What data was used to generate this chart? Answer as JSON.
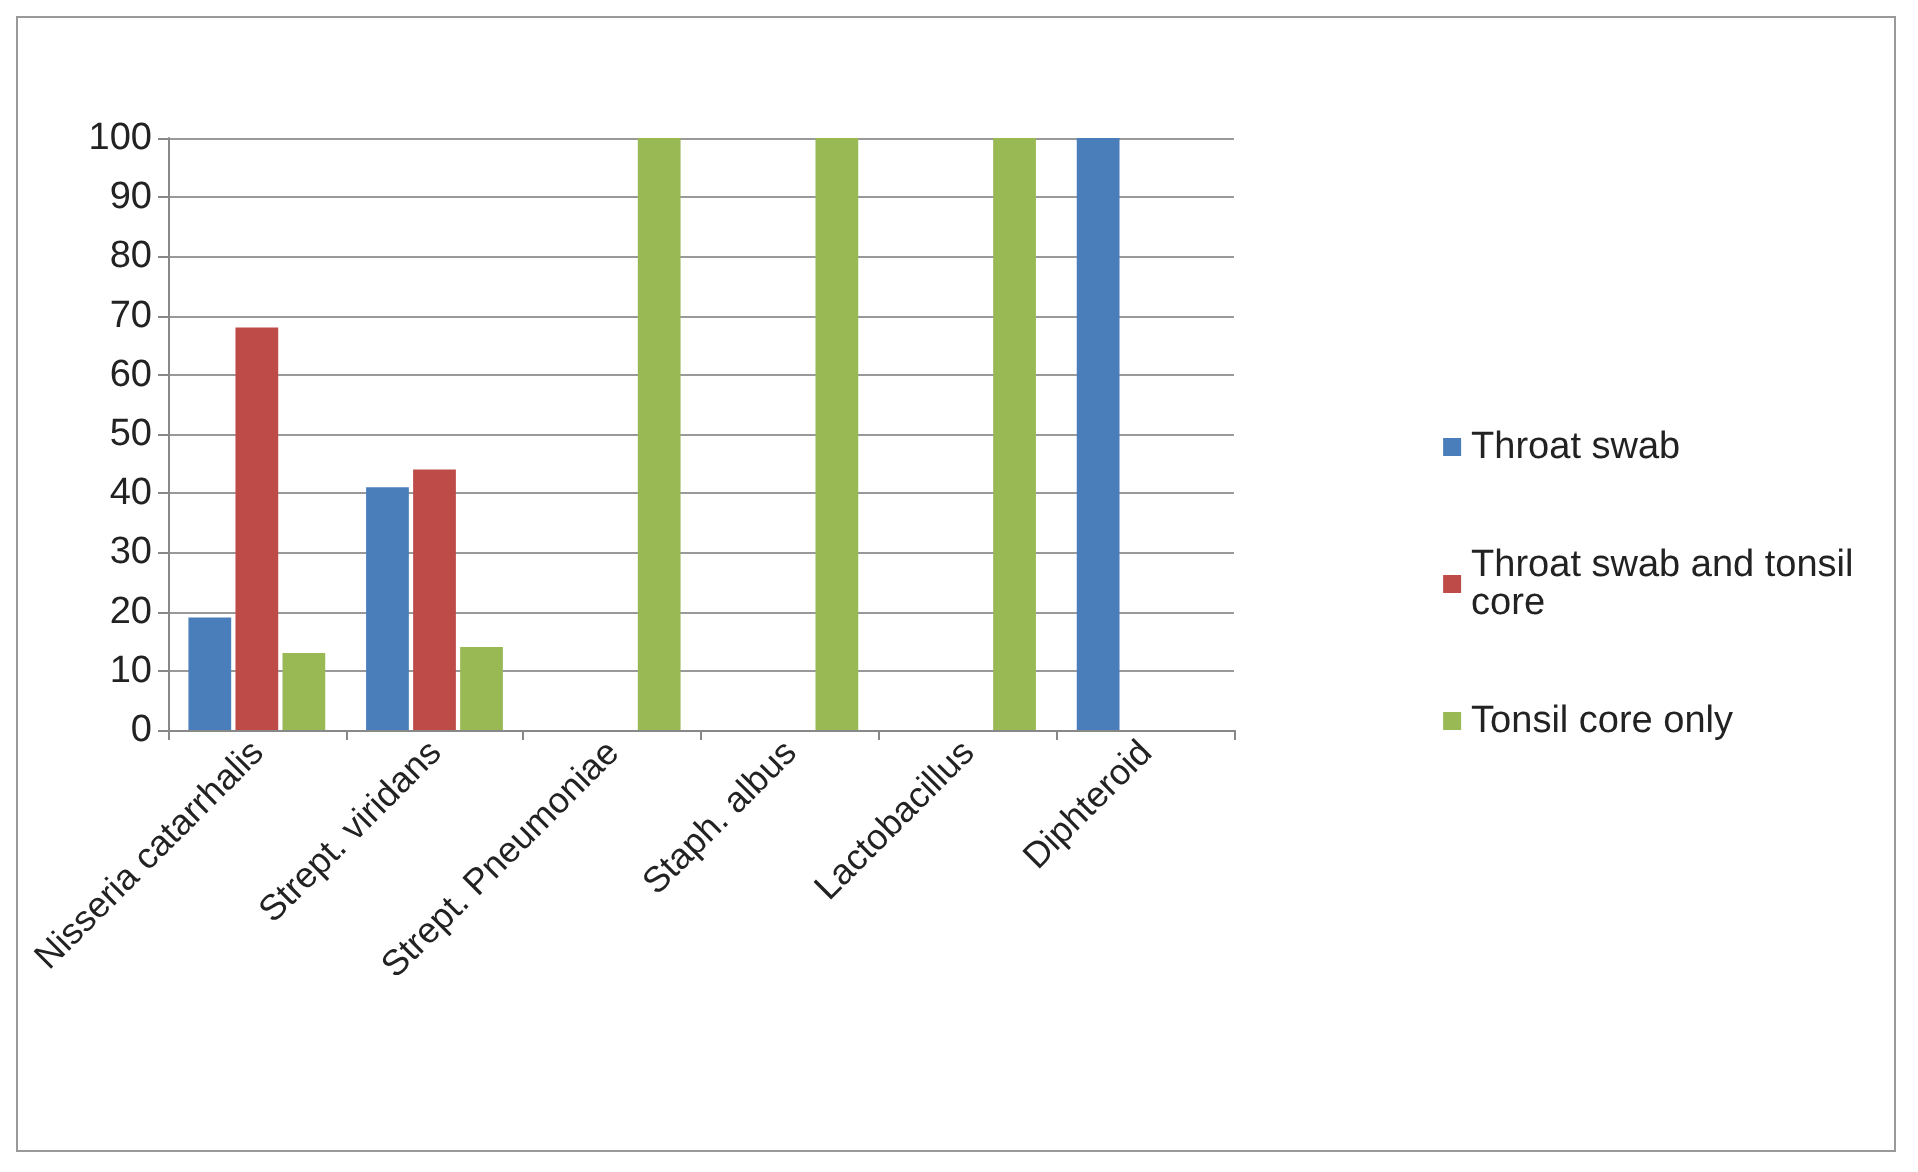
{
  "chart_data": {
    "type": "bar",
    "categories": [
      "Nisseria catarrhalis",
      "Strept. viridans",
      "Strept. Pneumoniae",
      "Staph. albus",
      "Lactobacillus",
      "Diphteroid"
    ],
    "series": [
      {
        "name": "Throat swab",
        "color": "#4a7ebb",
        "values": [
          19,
          41,
          0,
          0,
          0,
          100
        ]
      },
      {
        "name": "Throat swab and tonsil core",
        "color": "#be4b48",
        "values": [
          68,
          44,
          0,
          0,
          0,
          0
        ]
      },
      {
        "name": "Tonsil core only",
        "color": "#98b954",
        "values": [
          13,
          14,
          100,
          100,
          100,
          0
        ]
      }
    ],
    "ylim": [
      0,
      100
    ],
    "yticks": [
      0,
      10,
      20,
      30,
      40,
      50,
      60,
      70,
      80,
      90,
      100
    ],
    "grid": "y",
    "legend": "right"
  }
}
